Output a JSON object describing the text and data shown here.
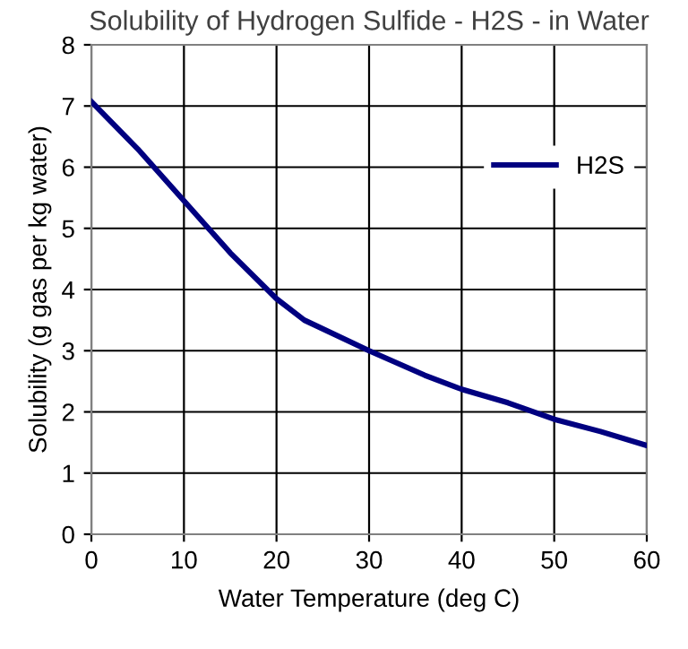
{
  "chart_data": {
    "type": "line",
    "title": "Solubility of Hydrogen Sulfide - H2S - in Water",
    "xlabel": "Water Temperature (deg C)",
    "ylabel": "Solubility (g gas per kg water)",
    "x": [
      0,
      5,
      10,
      15,
      20,
      23,
      30,
      36,
      40,
      45,
      50,
      55,
      60
    ],
    "series": [
      {
        "name": "H2S",
        "color": "#000080",
        "values": [
          7.07,
          6.3,
          5.45,
          4.6,
          3.85,
          3.5,
          3.0,
          2.6,
          2.37,
          2.15,
          1.88,
          1.68,
          1.45
        ]
      }
    ],
    "xlim": [
      0,
      60
    ],
    "ylim": [
      0,
      8
    ],
    "xticks": [
      0,
      10,
      20,
      30,
      40,
      50,
      60
    ],
    "yticks": [
      0,
      1,
      2,
      3,
      4,
      5,
      6,
      7,
      8
    ],
    "grid": true,
    "legend": "right",
    "marker": "none",
    "line_style": "solid"
  }
}
